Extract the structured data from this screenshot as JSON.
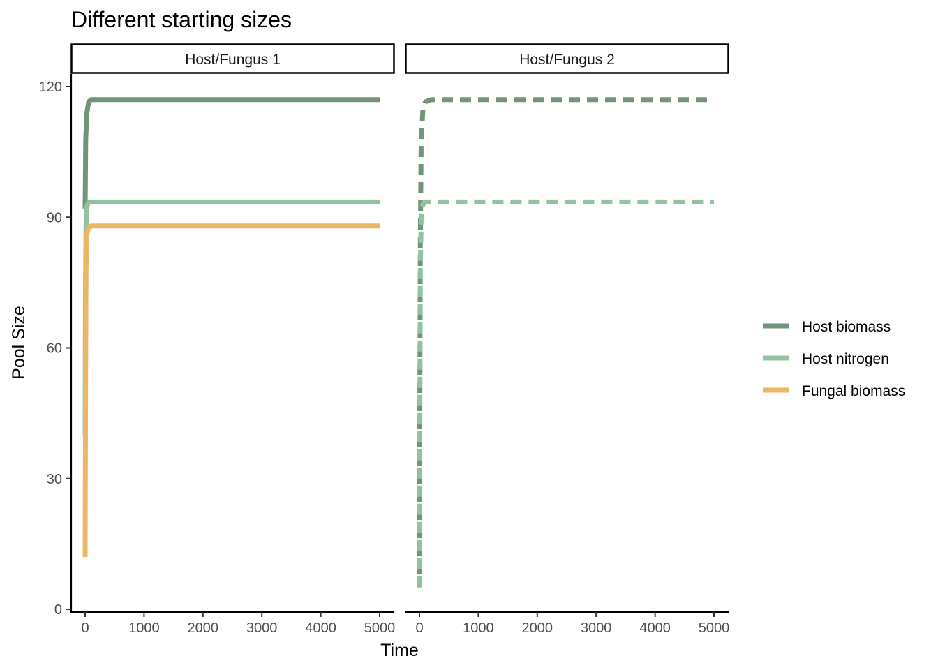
{
  "chart_data": {
    "type": "line",
    "title": "Different starting sizes",
    "xlabel": "Time",
    "ylabel": "Pool Size",
    "xlim": [
      0,
      5000
    ],
    "ylim": [
      0,
      120
    ],
    "x_ticks": [
      "0",
      "1000",
      "2000",
      "3000",
      "4000",
      "5000"
    ],
    "y_ticks": [
      "0",
      "30",
      "60",
      "90",
      "120"
    ],
    "grid": false,
    "legend_position": "right",
    "legend": [
      {
        "name": "Host biomass",
        "color": "#739478"
      },
      {
        "name": "Host nitrogen",
        "color": "#92c3a1"
      },
      {
        "name": "Fungal biomass",
        "color": "#ebb766"
      }
    ],
    "panels": [
      {
        "label": "Host/Fungus 1",
        "line_style": "solid",
        "series": [
          {
            "name": "Host biomass",
            "x": [
              0,
              10,
              30,
              60,
              100,
              200,
              500,
              1000,
              2000,
              3000,
              4000,
              5000
            ],
            "y": [
              92,
              108,
              114,
              116.5,
              117,
              117,
              117,
              117,
              117,
              117,
              117,
              117
            ]
          },
          {
            "name": "Host nitrogen",
            "x": [
              0,
              5,
              15,
              30,
              60,
              100,
              200,
              500,
              1000,
              2000,
              3000,
              4000,
              5000
            ],
            "y": [
              40,
              70,
              88,
              92.5,
              93.5,
              93.5,
              93.5,
              93.5,
              93.5,
              93.5,
              93.5,
              93.5,
              93.5
            ]
          },
          {
            "name": "Fungal biomass",
            "x": [
              0,
              5,
              15,
              30,
              60,
              100,
              200,
              500,
              1000,
              2000,
              3000,
              4000,
              5000
            ],
            "y": [
              12,
              40,
              78,
              86,
              87.8,
              88,
              88,
              88,
              88,
              88,
              88,
              88,
              88
            ]
          }
        ]
      },
      {
        "label": "Host/Fungus 2",
        "line_style": "dashed",
        "series": [
          {
            "name": "Host biomass",
            "x": [
              0,
              5,
              15,
              30,
              60,
              100,
              200,
              500,
              1000,
              2000,
              3000,
              4000,
              5000
            ],
            "y": [
              8,
              40,
              85,
              108,
              115,
              116.5,
              117,
              117,
              117,
              117,
              117,
              117,
              117
            ]
          },
          {
            "name": "Host nitrogen",
            "x": [
              0,
              5,
              15,
              30,
              60,
              100,
              200,
              500,
              1000,
              2000,
              3000,
              4000,
              5000
            ],
            "y": [
              5,
              35,
              78,
              90,
              93,
              93.5,
              93.5,
              93.5,
              93.5,
              93.5,
              93.5,
              93.5,
              93.5
            ]
          }
        ]
      }
    ]
  }
}
